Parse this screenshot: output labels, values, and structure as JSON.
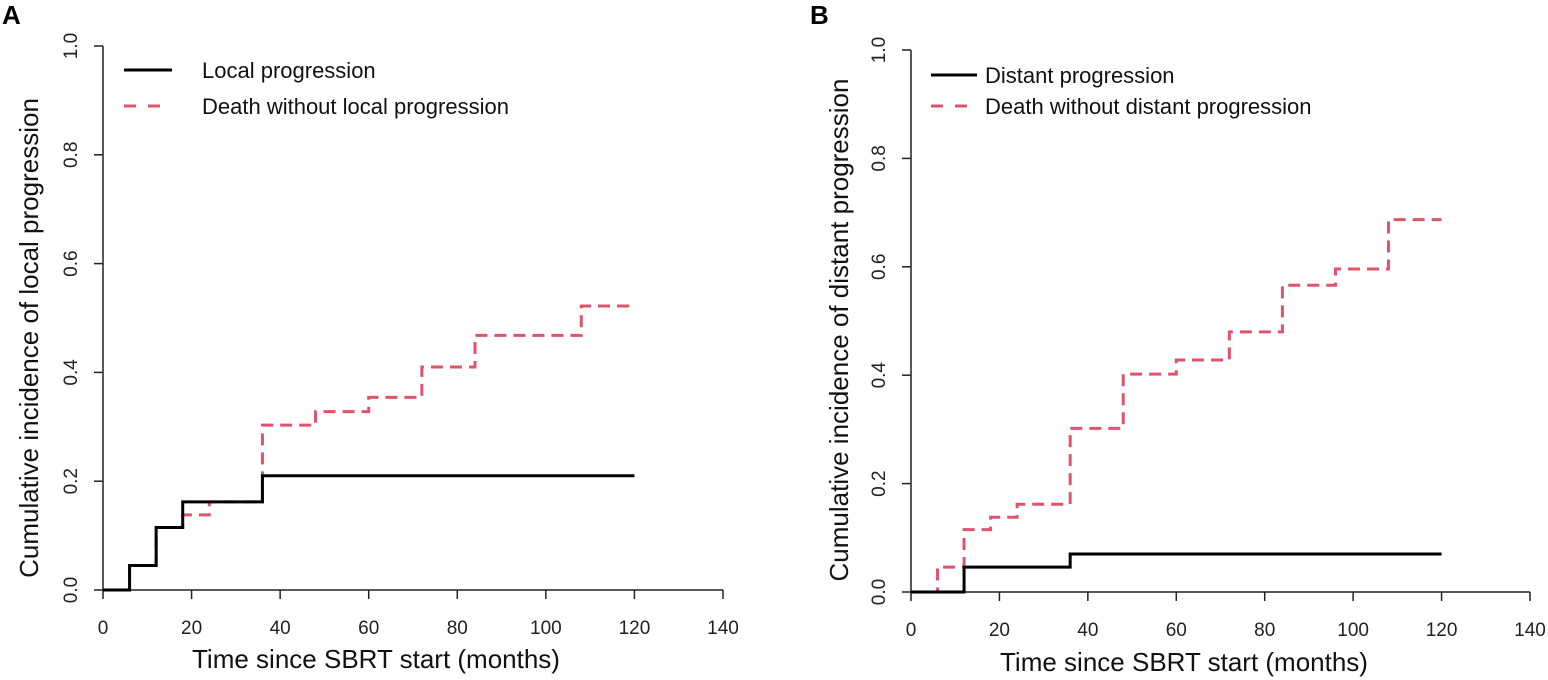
{
  "chart_data": [
    {
      "panel": "A",
      "type": "line",
      "step": true,
      "xlabel": "Time since SBRT start (months)",
      "ylabel": "Cumulative incidence of local progression",
      "xlim": [
        0,
        140
      ],
      "ylim": [
        0,
        1
      ],
      "xticks": [
        0,
        20,
        40,
        60,
        80,
        100,
        120,
        140
      ],
      "yticks": [
        0.0,
        0.2,
        0.4,
        0.6,
        0.8,
        1.0
      ],
      "xtick_labels": [
        "0",
        "20",
        "40",
        "60",
        "80",
        "100",
        "120",
        "140"
      ],
      "ytick_labels": [
        "0.0",
        "0.2",
        "0.4",
        "0.6",
        "0.8",
        "1.0"
      ],
      "grid": false,
      "legend_position": "top-left",
      "series": [
        {
          "name": "Local progression",
          "color": "#000000",
          "style": "solid",
          "x": [
            0,
            6,
            12,
            18,
            36,
            120
          ],
          "y": [
            0.0,
            0.045,
            0.115,
            0.162,
            0.21,
            0.21
          ]
        },
        {
          "name": "Death without local progression",
          "color": "#DF536B",
          "style": "dashed",
          "x": [
            0,
            6,
            12,
            18,
            24,
            36,
            48,
            60,
            72,
            84,
            108,
            120
          ],
          "y": [
            0.0,
            0.045,
            0.115,
            0.138,
            0.162,
            0.303,
            0.328,
            0.354,
            0.41,
            0.468,
            0.522,
            0.522
          ]
        }
      ]
    },
    {
      "panel": "B",
      "type": "line",
      "step": true,
      "xlabel": "Time since SBRT start (months)",
      "ylabel": "Cumulative incidence of distant progression",
      "xlim": [
        0,
        140
      ],
      "ylim": [
        0,
        1
      ],
      "xticks": [
        0,
        20,
        40,
        60,
        80,
        100,
        120,
        140
      ],
      "yticks": [
        0.0,
        0.2,
        0.4,
        0.6,
        0.8,
        1.0
      ],
      "xtick_labels": [
        "0",
        "20",
        "40",
        "60",
        "80",
        "100",
        "120",
        "140"
      ],
      "ytick_labels": [
        "0.0",
        "0.2",
        "0.4",
        "0.6",
        "0.8",
        "1.0"
      ],
      "grid": false,
      "legend_position": "top-left",
      "series": [
        {
          "name": "Distant progression",
          "color": "#000000",
          "style": "solid",
          "x": [
            0,
            12,
            36,
            120
          ],
          "y": [
            0.0,
            0.046,
            0.07,
            0.07
          ]
        },
        {
          "name": "Death without distant progression",
          "color": "#DF536B",
          "style": "dashed",
          "x": [
            0,
            6,
            12,
            18,
            24,
            36,
            48,
            60,
            72,
            84,
            96,
            108,
            120
          ],
          "y": [
            0.0,
            0.046,
            0.115,
            0.138,
            0.162,
            0.302,
            0.402,
            0.428,
            0.48,
            0.566,
            0.596,
            0.687,
            0.687
          ]
        }
      ]
    }
  ]
}
